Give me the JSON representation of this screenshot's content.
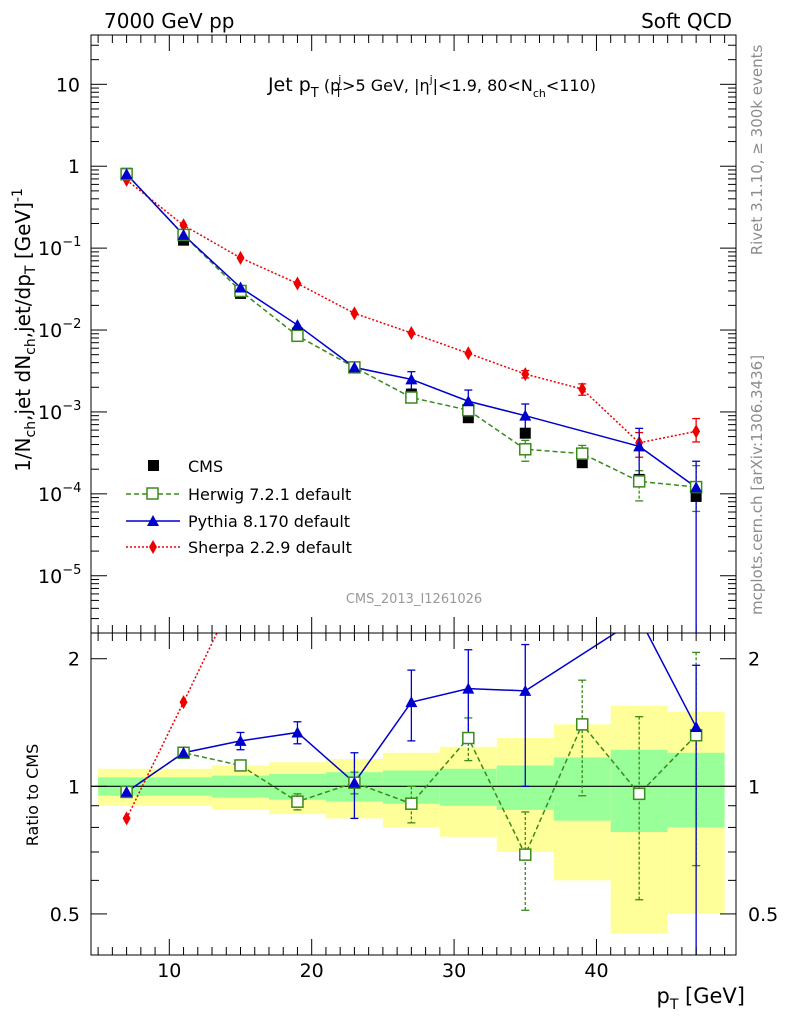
{
  "header": {
    "left": "7000 GeV pp",
    "right": "Soft QCD"
  },
  "side_labels": {
    "top": "Rivet 3.1.10, ≥ 300k events",
    "bottom": "mcplots.cern.ch [arXiv:1306.3436]"
  },
  "watermark": "CMS_2013_I1261026",
  "title": {
    "main": "Jet p",
    "t1": "T",
    "open": " (p",
    "t2": "T",
    "sup_j1": "j",
    "mid": ">5 GeV, |η",
    "sup_j2": "j",
    "mid2": "|<1.9, 80<N",
    "ch": "ch",
    "close": "<110)"
  },
  "ylabel": {
    "a": "1/N",
    "ch1": "ch",
    "b": ",jet dN",
    "ch2": "ch",
    "c": ",jet/dp",
    "t": "T",
    "d": " [GeV]",
    "e": "-1"
  },
  "xlabel": {
    "a": "p",
    "t": "T",
    "b": " [GeV]"
  },
  "ratio_ylabel": "Ratio to CMS",
  "legend": [
    "CMS",
    "Herwig 7.2.1 default",
    "Pythia 8.170 default",
    "Sherpa 2.2.9 default"
  ],
  "colors": {
    "cms": "#000000",
    "herwig": "#3a8a1c",
    "pythia": "#0000cc",
    "sherpa": "#ee0000",
    "band_inner": "#99ff99",
    "band_outer": "#ffff99"
  },
  "chart_data": {
    "type": "scatter",
    "x": [
      7,
      11,
      15,
      19,
      23,
      27,
      31,
      35,
      39,
      43,
      47
    ],
    "xlim": [
      4.5,
      49.8
    ],
    "ylim_main": [
      2e-06,
      40
    ],
    "ylim_ratio": [
      0.4,
      2.3
    ],
    "y_scale": "log",
    "x_ticks": [
      "10",
      "20",
      "30",
      "40"
    ],
    "y_ticks_main": [
      "10",
      "1",
      "10^-1",
      "10^-2",
      "10^-3",
      "10^-4",
      "10^-5"
    ],
    "y_ticks_ratio": [
      "2",
      "1",
      "0.5"
    ],
    "series": [
      {
        "name": "CMS",
        "values": [
          0.82,
          0.125,
          0.028,
          0.0092,
          0.0035,
          0.00165,
          0.00085,
          0.00055,
          0.00024,
          0.00015,
          9.3e-05
        ]
      },
      {
        "name": "Herwig 7.2.1 default",
        "values": [
          0.8,
          0.145,
          0.03,
          0.0085,
          0.0035,
          0.0015,
          0.00105,
          0.00035,
          0.00031,
          0.000142,
          0.000121
        ],
        "err_up": [
          0.0,
          0.0,
          0.0,
          0.0,
          0.0003,
          0.0002,
          0.0002,
          0.0001,
          8e-05,
          5e-05,
          0.0001
        ],
        "err_dn": [
          0.0,
          0.0,
          0.0,
          0.0,
          0.0003,
          0.0002,
          0.0002,
          0.0001,
          8e-05,
          6e-05,
          6e-05
        ]
      },
      {
        "name": "Pythia 8.170 default",
        "values": [
          0.8,
          0.145,
          0.033,
          0.0115,
          0.0035,
          0.0025,
          0.00135,
          0.0009,
          0.0,
          0.00038,
          0.00012
        ],
        "err_up": [
          0.0,
          0.0,
          0.0,
          0.0,
          0.0005,
          0.0006,
          0.0005,
          0.00035,
          0.0,
          0.00025,
          0.00013
        ],
        "err_dn": [
          0.0,
          0.0,
          0.0,
          0.0,
          0.0005,
          0.0006,
          0.0005,
          0.00035,
          0.0,
          0.00025,
          0.0001199
        ]
      },
      {
        "name": "Sherpa 2.2.9 default",
        "values": [
          0.68,
          0.19,
          0.076,
          0.037,
          0.016,
          0.0092,
          0.0052,
          0.0029,
          0.0019,
          0.00042,
          0.00058
        ],
        "err_up": [
          0.0,
          0.0,
          0.0,
          0.0,
          0.0,
          0.0,
          0.0,
          0.0003,
          0.0003,
          0.00014,
          0.00025
        ],
        "err_dn": [
          0.0,
          0.0,
          0.0,
          0.0,
          0.0,
          0.0,
          0.0,
          0.0003,
          0.0003,
          0.00014,
          0.00015
        ]
      }
    ],
    "pythia_points_x": [
      7,
      11,
      15,
      19,
      23,
      27,
      31,
      35,
      43,
      47
    ],
    "ratio": {
      "herwig": {
        "values": [
          0.97,
          1.2,
          1.12,
          0.92,
          1.02,
          0.91,
          1.3,
          0.69,
          1.4,
          0.96,
          1.32
        ],
        "err_up": [
          0,
          0,
          0,
          0.04,
          0.06,
          0.09,
          0.15,
          0.18,
          0.38,
          0.5,
          0.75
        ],
        "err_dn": [
          0,
          0,
          0,
          0.04,
          0.06,
          0.09,
          0.15,
          0.18,
          0.45,
          0.42,
          0.67
        ]
      },
      "pythia": {
        "x": [
          7,
          11,
          15,
          19,
          23,
          27,
          31,
          35,
          43,
          47
        ],
        "values": [
          0.97,
          1.2,
          1.28,
          1.34,
          1.02,
          1.58,
          1.7,
          1.68,
          2.5,
          1.38
        ],
        "err_up": [
          0,
          0.03,
          0.06,
          0.08,
          0.18,
          0.3,
          0.4,
          0.48,
          0,
          0.55
        ],
        "err_dn": [
          0,
          0.03,
          0.06,
          0.08,
          0.18,
          0.3,
          0.4,
          0.68,
          0,
          1.5
        ]
      },
      "sherpa": {
        "values": [
          0.84,
          1.58,
          3.0
        ]
      },
      "band_outer": [
        0.1,
        0.1,
        0.12,
        0.14,
        0.16,
        0.2,
        0.24,
        0.3,
        0.4,
        0.55,
        0.5
      ],
      "band_inner": [
        0.05,
        0.05,
        0.06,
        0.07,
        0.08,
        0.09,
        0.1,
        0.12,
        0.17,
        0.22,
        0.2
      ]
    }
  }
}
